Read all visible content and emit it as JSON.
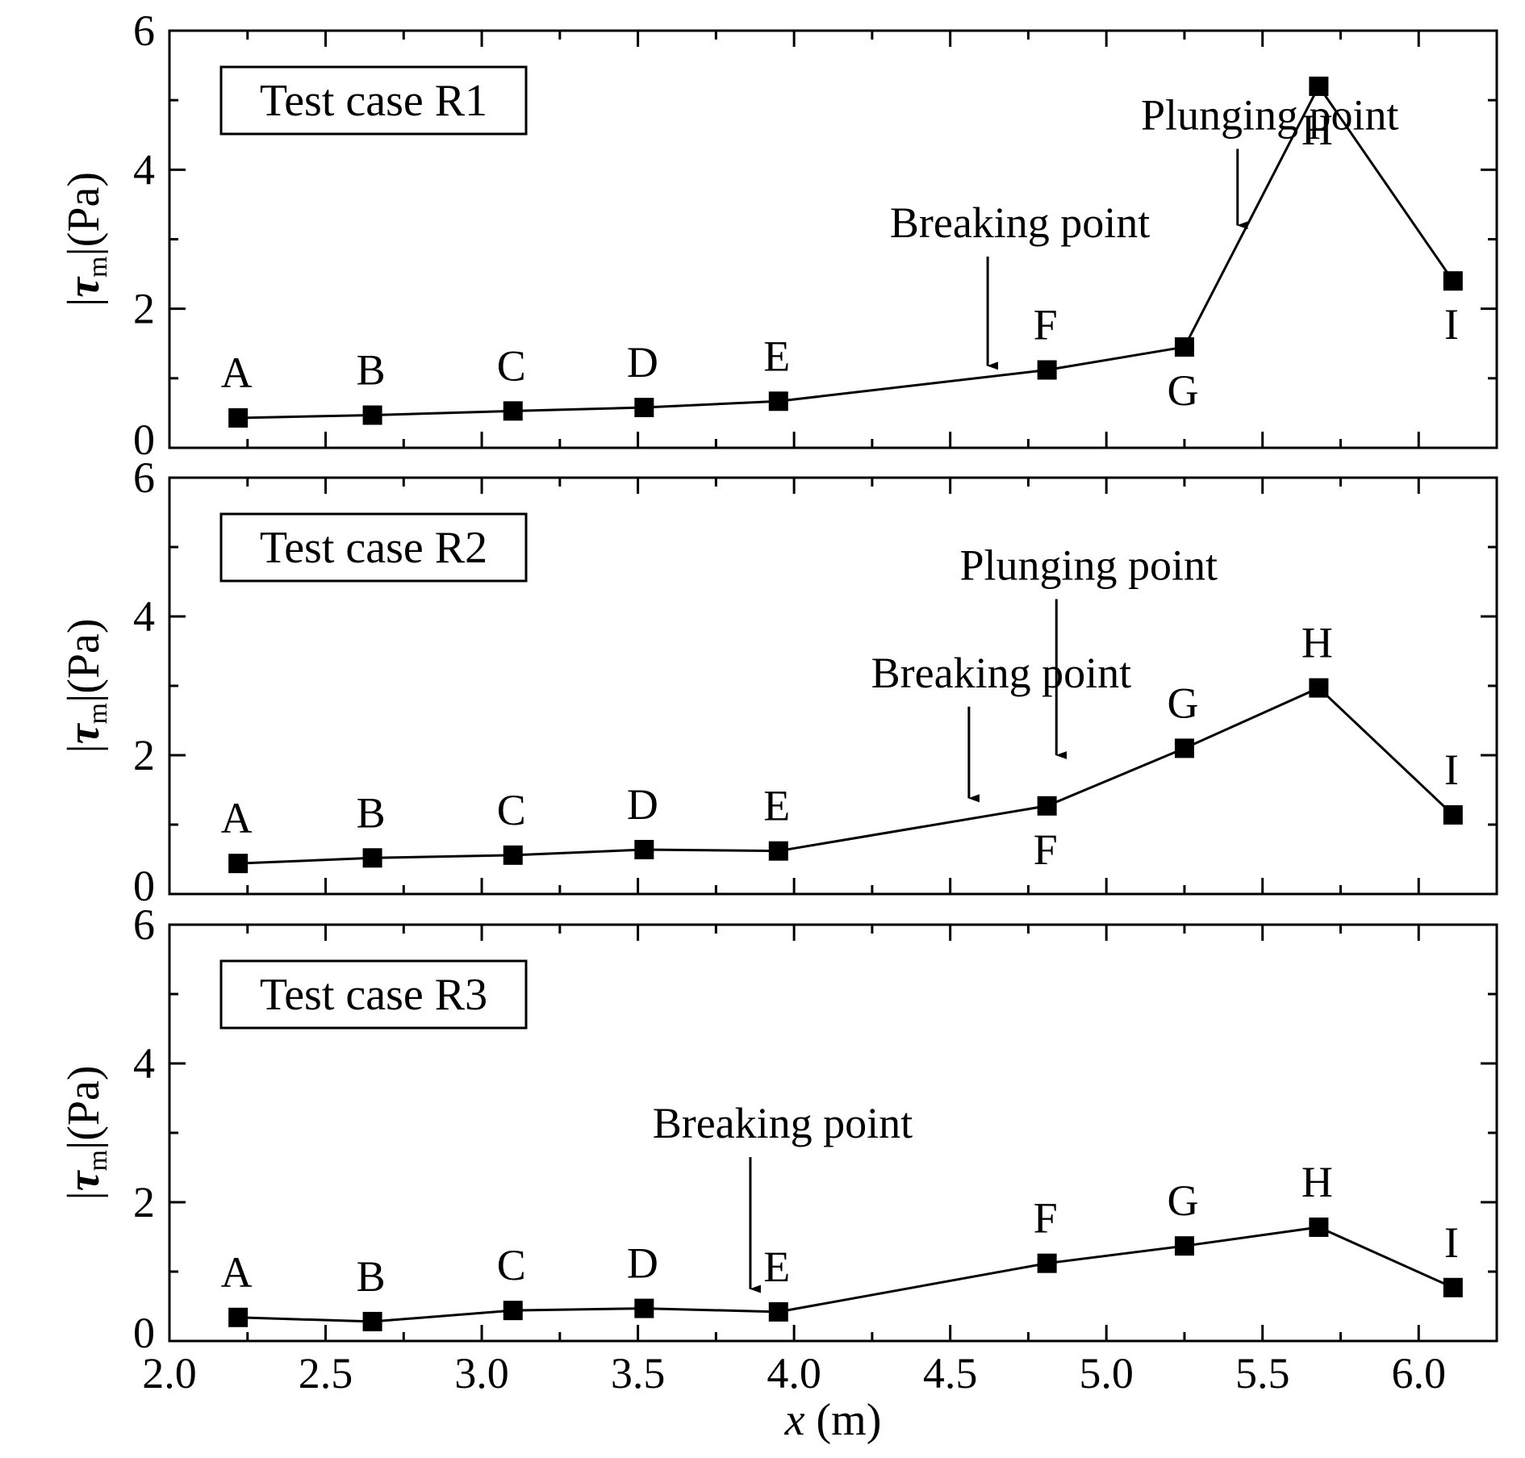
{
  "chart_data": [
    {
      "type": "line",
      "case_label": "Test case R1",
      "ylabel": {
        "prefix": "|",
        "symbol": "τ",
        "subscript": "m",
        "suffix": "|(Pa)"
      },
      "xlim": [
        2.0,
        6.25
      ],
      "ylim": [
        0,
        6
      ],
      "yticks": [
        0,
        2,
        4,
        6
      ],
      "x": [
        2.22,
        2.65,
        3.1,
        3.52,
        3.95,
        4.81,
        5.25,
        5.68,
        6.11
      ],
      "values": [
        0.43,
        0.47,
        0.53,
        0.58,
        0.67,
        1.12,
        1.45,
        5.2,
        2.4
      ],
      "point_labels": [
        "A",
        "B",
        "C",
        "D",
        "E",
        "F",
        "G",
        "H",
        "I"
      ],
      "point_label_side": [
        "above",
        "above",
        "above",
        "above",
        "above",
        "above",
        "below",
        "below",
        "below"
      ],
      "annotations": [
        {
          "text": "Breaking point",
          "arrow_x": 4.62,
          "arrow_from": 2.75,
          "arrow_to": 1.18
        },
        {
          "text": "Plunging point",
          "arrow_x": 5.42,
          "arrow_from": 4.3,
          "arrow_to": 3.2
        }
      ]
    },
    {
      "type": "line",
      "case_label": "Test case R2",
      "ylabel": {
        "prefix": "|",
        "symbol": "τ",
        "subscript": "m",
        "suffix": "|(Pa)"
      },
      "xlim": [
        2.0,
        6.25
      ],
      "ylim": [
        0,
        6
      ],
      "yticks": [
        0,
        2,
        4,
        6
      ],
      "x": [
        2.22,
        2.65,
        3.1,
        3.52,
        3.95,
        4.81,
        5.25,
        5.68,
        6.11
      ],
      "values": [
        0.44,
        0.52,
        0.56,
        0.64,
        0.62,
        1.27,
        2.1,
        2.97,
        1.14
      ],
      "point_labels": [
        "A",
        "B",
        "C",
        "D",
        "E",
        "F",
        "G",
        "H",
        "I"
      ],
      "point_label_side": [
        "above",
        "above",
        "above",
        "above",
        "above",
        "below",
        "above",
        "above",
        "above"
      ],
      "annotations": [
        {
          "text": "Breaking point",
          "arrow_x": 4.56,
          "arrow_from": 2.7,
          "arrow_to": 1.38
        },
        {
          "text": "Plunging point",
          "arrow_x": 4.84,
          "arrow_from": 4.25,
          "arrow_to": 2.0
        }
      ]
    },
    {
      "type": "line",
      "case_label": "Test case R3",
      "ylabel": {
        "prefix": "|",
        "symbol": "τ",
        "subscript": "m",
        "suffix": "|(Pa)"
      },
      "xlabel": {
        "symbol": "x",
        "suffix": " (m)"
      },
      "xlim": [
        2.0,
        6.25
      ],
      "ylim": [
        0,
        6
      ],
      "yticks": [
        0,
        2,
        4,
        6
      ],
      "xticks": [
        2.0,
        2.5,
        3.0,
        3.5,
        4.0,
        4.5,
        5.0,
        5.5,
        6.0
      ],
      "xtick_labels": [
        "2.0",
        "2.5",
        "3.0",
        "3.5",
        "4.0",
        "4.5",
        "5.0",
        "5.5",
        "6.0"
      ],
      "x": [
        2.22,
        2.65,
        3.1,
        3.52,
        3.95,
        4.81,
        5.25,
        5.68,
        6.11
      ],
      "values": [
        0.34,
        0.28,
        0.44,
        0.47,
        0.42,
        1.12,
        1.37,
        1.64,
        0.77
      ],
      "point_labels": [
        "A",
        "B",
        "C",
        "D",
        "E",
        "F",
        "G",
        "H",
        "I"
      ],
      "point_label_side": [
        "above",
        "above",
        "above",
        "above",
        "above",
        "above",
        "above",
        "above",
        "above"
      ],
      "annotations": [
        {
          "text": "Breaking point",
          "arrow_x": 3.86,
          "arrow_from": 2.65,
          "arrow_to": 0.75
        }
      ]
    }
  ]
}
